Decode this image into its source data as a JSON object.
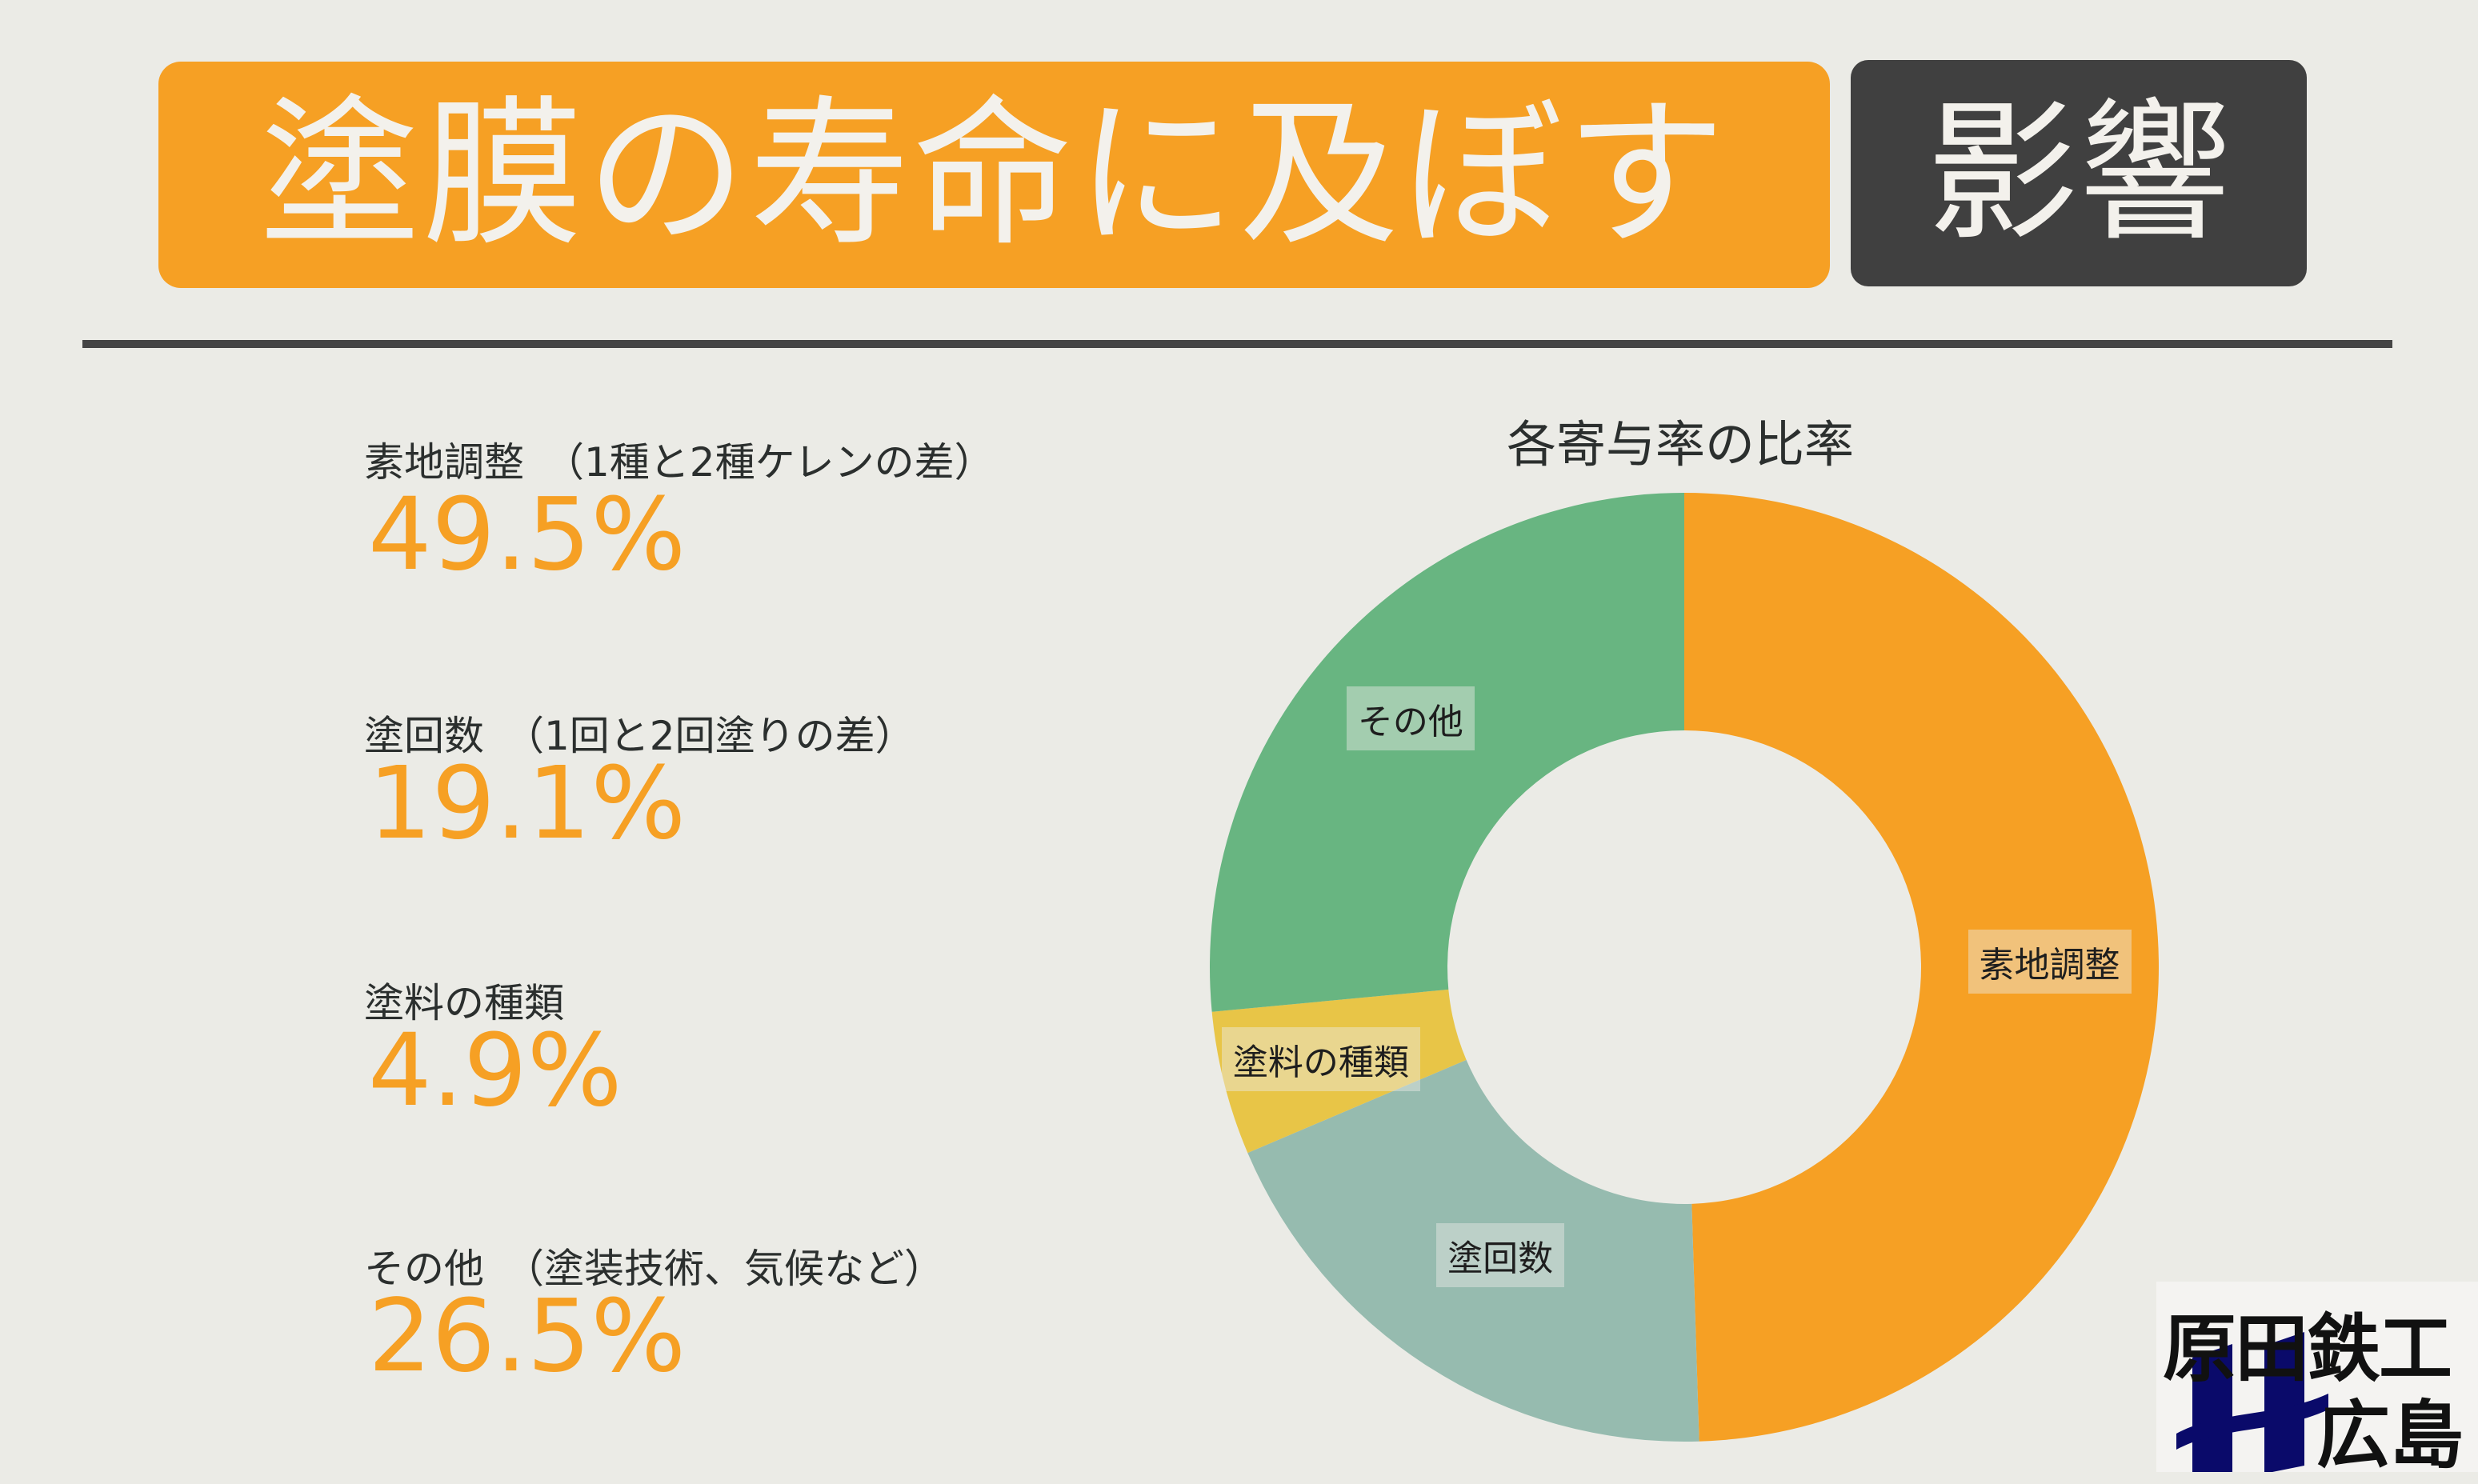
{
  "header": {
    "title": "塗膜の寿命に及ぼす",
    "title_highlight": "影響"
  },
  "items": [
    {
      "label": "素地調整　（1種と2種ケレンの差）",
      "value": "49.5%"
    },
    {
      "label": "塗回数　（1回と2回塗りの差）",
      "value": "19.1%"
    },
    {
      "label": "塗料の種類",
      "value": "4.9%"
    },
    {
      "label": "その他　（塗装技術、気候など）",
      "value": "26.5%"
    }
  ],
  "chart_data": {
    "type": "pie",
    "title": "各寄与率の比率",
    "categories": [
      "素地調整",
      "塗回数",
      "塗料の種類",
      "その他"
    ],
    "values": [
      49.5,
      19.1,
      4.9,
      26.5
    ],
    "colors": [
      "#F6A024",
      "#96BBAF",
      "#E8C547",
      "#68B581"
    ],
    "donut": true,
    "legend": "none"
  },
  "logo": {
    "line1": "原田鉄工",
    "line2": "広島"
  }
}
